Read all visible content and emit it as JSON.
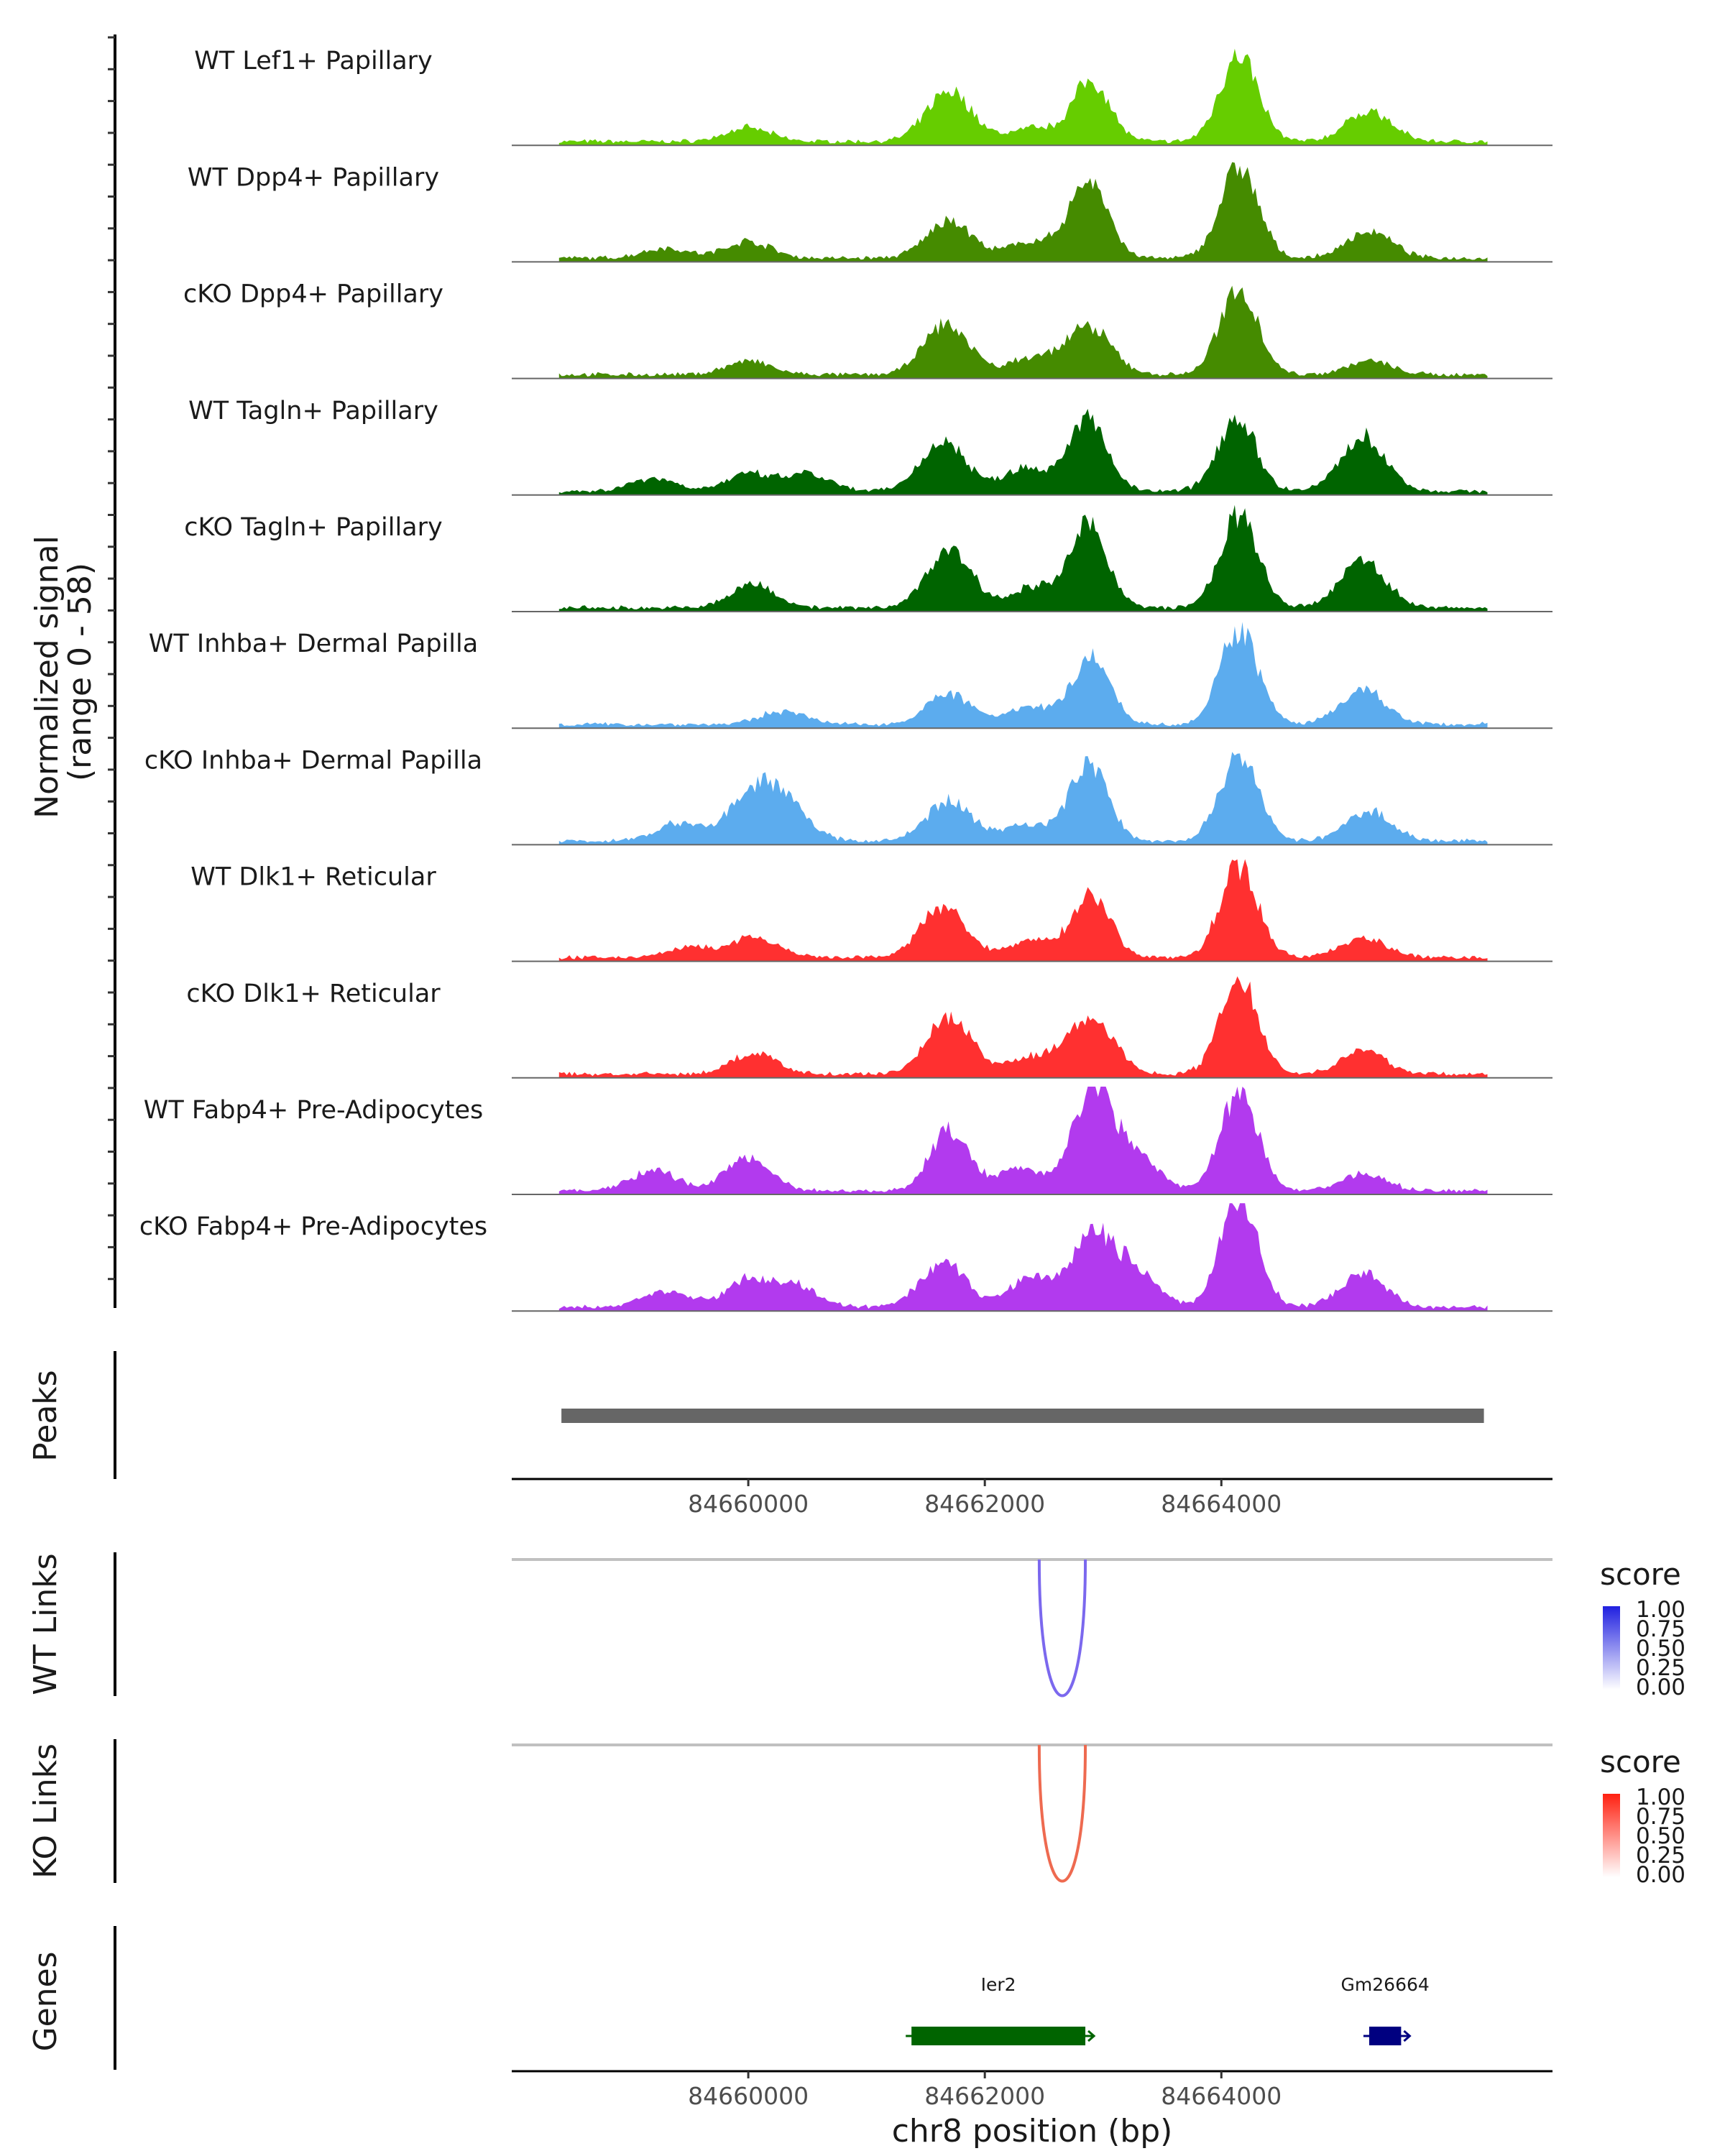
{
  "chart_data": {
    "type": "area",
    "title": "",
    "region": {
      "chromosome": "chr8",
      "start": 84658000,
      "end": 84666800
    },
    "signal_axis": {
      "label": "Normalized signal",
      "range_label": "(range 0 - 58)",
      "ylim": [
        0,
        58
      ]
    },
    "x_axis": {
      "xlabel": "chr8 position (bp)",
      "ticks": [
        84660000,
        84662000,
        84664000
      ],
      "tick_labels": [
        "84660000",
        "84662000",
        "84664000"
      ]
    },
    "peak_centers": [
      84660000,
      84661670,
      84662870,
      84664120,
      84665200
    ],
    "series": [
      {
        "name": "WT Lef1+ Papillary",
        "color": "#66CD00",
        "peaks": [
          {
            "pos": 84660000,
            "h": 8
          },
          {
            "pos": 84661700,
            "h": 30
          },
          {
            "pos": 84662400,
            "h": 8
          },
          {
            "pos": 84662900,
            "h": 36
          },
          {
            "pos": 84664150,
            "h": 52
          },
          {
            "pos": 84665250,
            "h": 18
          }
        ]
      },
      {
        "name": "WT Dpp4+ Papillary",
        "color": "#458B00",
        "peaks": [
          {
            "pos": 84659300,
            "h": 6
          },
          {
            "pos": 84660000,
            "h": 10
          },
          {
            "pos": 84661700,
            "h": 22
          },
          {
            "pos": 84662400,
            "h": 10
          },
          {
            "pos": 84662880,
            "h": 46
          },
          {
            "pos": 84664150,
            "h": 54
          },
          {
            "pos": 84665250,
            "h": 16
          }
        ]
      },
      {
        "name": "cKO Dpp4+ Papillary",
        "color": "#458B00",
        "peaks": [
          {
            "pos": 84660000,
            "h": 8
          },
          {
            "pos": 84661680,
            "h": 30
          },
          {
            "pos": 84662400,
            "h": 10
          },
          {
            "pos": 84662880,
            "h": 28
          },
          {
            "pos": 84664150,
            "h": 52
          },
          {
            "pos": 84665250,
            "h": 8
          }
        ]
      },
      {
        "name": "WT Tagln+ Papillary",
        "color": "#006400",
        "peaks": [
          {
            "pos": 84659200,
            "h": 8
          },
          {
            "pos": 84660000,
            "h": 10
          },
          {
            "pos": 84660500,
            "h": 10
          },
          {
            "pos": 84661650,
            "h": 30
          },
          {
            "pos": 84662350,
            "h": 14
          },
          {
            "pos": 84662870,
            "h": 44
          },
          {
            "pos": 84664130,
            "h": 44
          },
          {
            "pos": 84665200,
            "h": 32
          }
        ]
      },
      {
        "name": "cKO Tagln+ Papillary",
        "color": "#006400",
        "peaks": [
          {
            "pos": 84660050,
            "h": 14
          },
          {
            "pos": 84661700,
            "h": 34
          },
          {
            "pos": 84662400,
            "h": 12
          },
          {
            "pos": 84662880,
            "h": 48
          },
          {
            "pos": 84664150,
            "h": 54
          },
          {
            "pos": 84665200,
            "h": 28
          }
        ]
      },
      {
        "name": "WT Inhba+ Dermal Papilla",
        "color": "#5CACEE",
        "peaks": [
          {
            "pos": 84660300,
            "h": 8
          },
          {
            "pos": 84661700,
            "h": 18
          },
          {
            "pos": 84662400,
            "h": 10
          },
          {
            "pos": 84662900,
            "h": 40
          },
          {
            "pos": 84664150,
            "h": 56
          },
          {
            "pos": 84665200,
            "h": 20
          }
        ]
      },
      {
        "name": "cKO Inhba+ Dermal Papilla",
        "color": "#5CACEE",
        "peaks": [
          {
            "pos": 84659400,
            "h": 10
          },
          {
            "pos": 84660000,
            "h": 24
          },
          {
            "pos": 84660300,
            "h": 24
          },
          {
            "pos": 84661700,
            "h": 24
          },
          {
            "pos": 84662350,
            "h": 10
          },
          {
            "pos": 84662880,
            "h": 46
          },
          {
            "pos": 84664150,
            "h": 52
          },
          {
            "pos": 84665250,
            "h": 18
          }
        ]
      },
      {
        "name": "WT Dlk1+ Reticular",
        "color": "#FF3030",
        "peaks": [
          {
            "pos": 84659500,
            "h": 6
          },
          {
            "pos": 84660050,
            "h": 12
          },
          {
            "pos": 84661650,
            "h": 30
          },
          {
            "pos": 84662400,
            "h": 10
          },
          {
            "pos": 84662900,
            "h": 38
          },
          {
            "pos": 84664150,
            "h": 54
          },
          {
            "pos": 84665200,
            "h": 12
          }
        ]
      },
      {
        "name": "cKO Dlk1+ Reticular",
        "color": "#FF3030",
        "peaks": [
          {
            "pos": 84660050,
            "h": 12
          },
          {
            "pos": 84661700,
            "h": 34
          },
          {
            "pos": 84662400,
            "h": 10
          },
          {
            "pos": 84662900,
            "h": 34
          },
          {
            "pos": 84664150,
            "h": 56
          },
          {
            "pos": 84665200,
            "h": 14
          }
        ]
      },
      {
        "name": "WT Fabp4+ Pre-Adipocytes",
        "color": "#B23AEE",
        "peaks": [
          {
            "pos": 84659200,
            "h": 12
          },
          {
            "pos": 84660000,
            "h": 20
          },
          {
            "pos": 84661700,
            "h": 36
          },
          {
            "pos": 84662300,
            "h": 14
          },
          {
            "pos": 84662900,
            "h": 58
          },
          {
            "pos": 84663250,
            "h": 24
          },
          {
            "pos": 84664150,
            "h": 58
          },
          {
            "pos": 84665200,
            "h": 10
          }
        ]
      },
      {
        "name": "cKO Fabp4+ Pre-Adipocytes",
        "color": "#B23AEE",
        "peaks": [
          {
            "pos": 84659300,
            "h": 10
          },
          {
            "pos": 84660000,
            "h": 16
          },
          {
            "pos": 84660400,
            "h": 12
          },
          {
            "pos": 84661650,
            "h": 26
          },
          {
            "pos": 84662400,
            "h": 18
          },
          {
            "pos": 84662900,
            "h": 40
          },
          {
            "pos": 84663250,
            "h": 24
          },
          {
            "pos": 84664150,
            "h": 64
          },
          {
            "pos": 84665200,
            "h": 20
          }
        ]
      }
    ],
    "peaks_track": {
      "label": "Peaks",
      "color": "#666666",
      "start": 84658420,
      "end": 84666220
    },
    "links": [
      {
        "label": "WT Links",
        "start": 84662460,
        "end": 84662850,
        "score": 0.7,
        "color": "#7B68EE",
        "legend": {
          "title": "score",
          "low_color": "#ffffff",
          "high_color": "#2020e0",
          "ticks": [
            "1.00",
            "0.75",
            "0.50",
            "0.25",
            "0.00"
          ]
        }
      },
      {
        "label": "KO Links",
        "start": 84662460,
        "end": 84662850,
        "score": 0.7,
        "color": "#EE6A50",
        "legend": {
          "title": "score",
          "low_color": "#ffffff",
          "high_color": "#ff2010",
          "ticks": [
            "1.00",
            "0.75",
            "0.50",
            "0.25",
            "0.00"
          ]
        }
      }
    ],
    "genes_track": {
      "label": "Genes",
      "genes": [
        {
          "name": "Ier2",
          "start": 84661380,
          "end": 84662850,
          "strand": "+",
          "color": "#006400"
        },
        {
          "name": "Gm26664",
          "start": 84665250,
          "end": 84665520,
          "strand": "+",
          "color": "#000080"
        }
      ]
    }
  }
}
